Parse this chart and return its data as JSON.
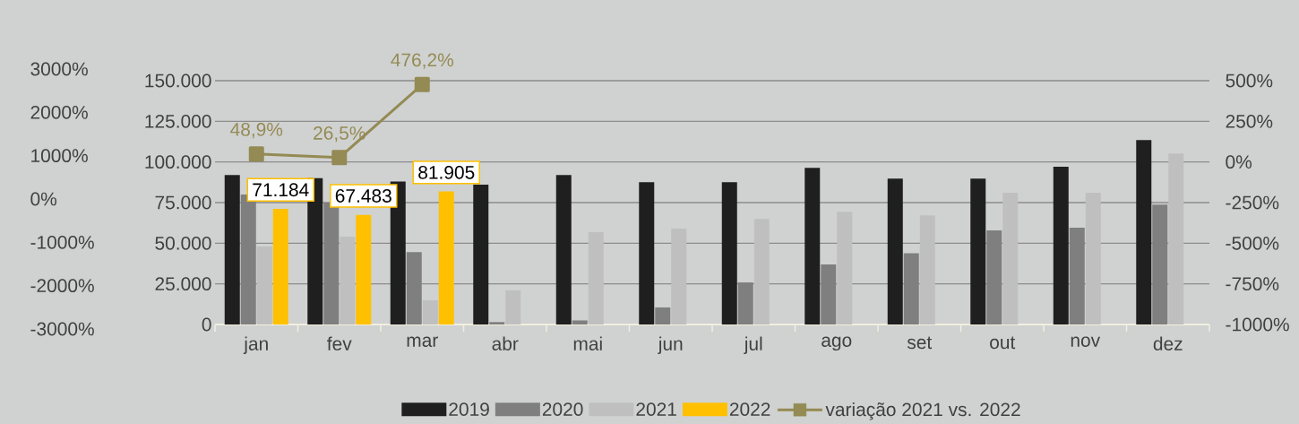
{
  "chart_data": {
    "type": "bar",
    "categories": [
      "jan",
      "fev",
      "mar",
      "abr",
      "mai",
      "jun",
      "jul",
      "ago",
      "set",
      "out",
      "nov",
      "dez"
    ],
    "series": [
      {
        "name": "2019",
        "color": "#1f1f1f",
        "values": [
          92000,
          90000,
          88000,
          86000,
          92000,
          87600,
          87600,
          96400,
          89800,
          89800,
          97100,
          113500
        ]
      },
      {
        "name": "2020",
        "color": "#7f7f7f",
        "values": [
          80000,
          75000,
          44600,
          1500,
          2500,
          10500,
          25900,
          36900,
          43800,
          57900,
          59500,
          73800
        ]
      },
      {
        "name": "2021",
        "color": "#bfbfbf",
        "values": [
          48000,
          54000,
          14900,
          21000,
          56800,
          59000,
          65000,
          69400,
          67200,
          81000,
          81000,
          105200
        ]
      },
      {
        "name": "2022",
        "color": "#ffc000",
        "values": [
          71184,
          67483,
          81905,
          null,
          null,
          null,
          null,
          null,
          null,
          null,
          null,
          null
        ],
        "value_labels": [
          "71.184",
          "67.483",
          "81.905",
          null,
          null,
          null,
          null,
          null,
          null,
          null,
          null,
          null
        ]
      },
      {
        "name": "variação 2021 vs. 2022",
        "type": "line",
        "axis": "y2",
        "color": "#948a54",
        "marker": "square",
        "values": [
          48.9,
          26.5,
          476.2,
          null,
          null,
          null,
          null,
          null,
          null,
          null,
          null,
          null
        ],
        "value_labels": [
          "48,9%",
          "26,5%",
          "476,2%",
          null,
          null,
          null,
          null,
          null,
          null,
          null,
          null,
          null
        ]
      }
    ],
    "ylim": [
      0,
      150000
    ],
    "yticks": [
      0,
      {
        "value": 25000,
        "label": "25.000"
      },
      {
        "value": 50000,
        "label": "50.000"
      },
      {
        "value": 75000,
        "label": "75.000"
      },
      {
        "value": 100000,
        "label": "100.000"
      },
      {
        "value": 125000,
        "label": "125.000"
      },
      {
        "value": 150000,
        "label": "150.000"
      }
    ],
    "y2lim": [
      -1000,
      500
    ],
    "y2ticks": [
      {
        "value": -1000,
        "label": "-1000%"
      },
      {
        "value": -750,
        "label": "-750%"
      },
      {
        "value": -500,
        "label": "-500%"
      },
      {
        "value": -250,
        "label": "-250%"
      },
      {
        "value": 0,
        "label": "0%"
      },
      {
        "value": 250,
        "label": "250%"
      },
      {
        "value": 500,
        "label": "500%"
      }
    ],
    "y3lim": [
      -3000,
      3000
    ],
    "y3ticks": [
      {
        "value": -3000,
        "label": "-3000%"
      },
      {
        "value": -2000,
        "label": "-2000%"
      },
      {
        "value": -1000,
        "label": "-1000%"
      },
      {
        "value": 0,
        "label": "0%"
      },
      {
        "value": 1000,
        "label": "1000%"
      },
      {
        "value": 2000,
        "label": "2000%"
      },
      {
        "value": 3000,
        "label": "3000%"
      }
    ],
    "grid": "y",
    "legend": "bottom"
  }
}
